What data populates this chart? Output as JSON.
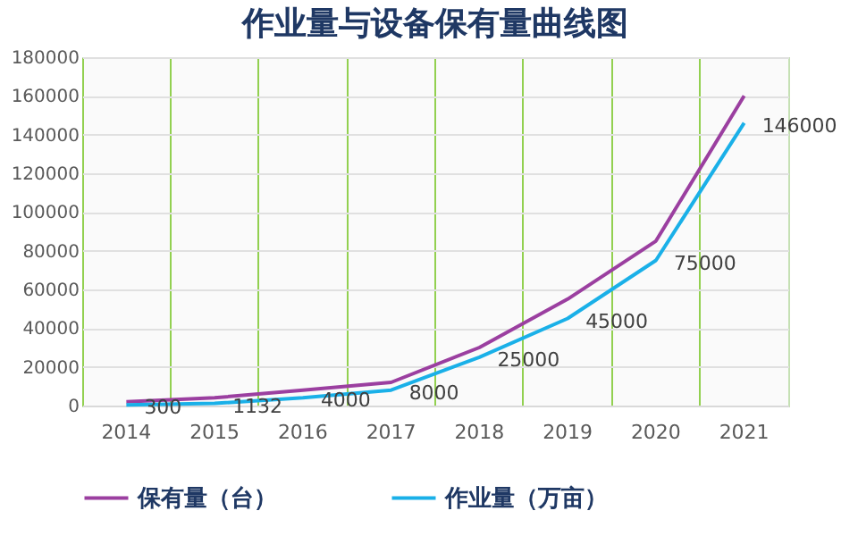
{
  "chart_data": {
    "type": "line",
    "title": "作业量与设备保有量曲线图",
    "categories": [
      "2014",
      "2015",
      "2016",
      "2017",
      "2018",
      "2019",
      "2020",
      "2021"
    ],
    "series": [
      {
        "name": "保有量（台）",
        "color": "#9b3fa0",
        "values": [
          2000,
          4000,
          8000,
          12000,
          30000,
          55000,
          85000,
          160000
        ]
      },
      {
        "name": "作业量（万亩）",
        "color": "#1ab0e8",
        "values": [
          300,
          1132,
          4000,
          8000,
          25000,
          45000,
          75000,
          146000
        ],
        "value_labels": [
          "300",
          "1132",
          "4000",
          "8000",
          "25000",
          "45000",
          "75000",
          "146000"
        ]
      }
    ],
    "ylim": [
      0,
      180000
    ],
    "yticks": [
      0,
      20000,
      40000,
      60000,
      80000,
      100000,
      120000,
      140000,
      160000,
      180000
    ],
    "grid": true,
    "legend": "bottom",
    "marker": "none",
    "line_style": "solid"
  }
}
